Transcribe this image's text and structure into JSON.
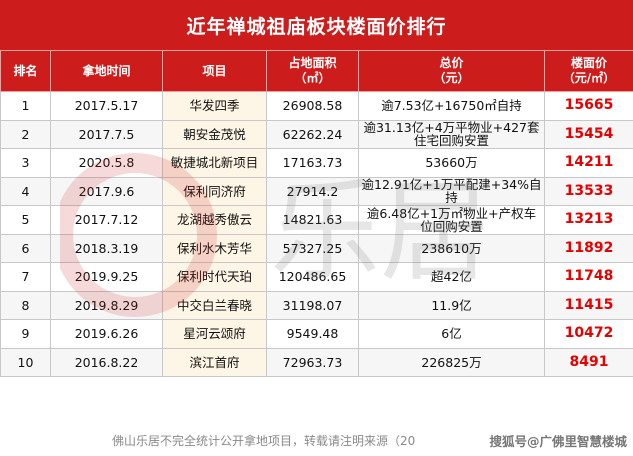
{
  "title": "近年禅城祖庙板块楼面价排行",
  "headers": {
    "rank": "排名",
    "date": "拿地时间",
    "project": "项目",
    "area": "占地面积",
    "area_unit": "（㎡）",
    "total": "总价",
    "total_unit": "（元）",
    "price": "楼面价",
    "price_unit": "（元/㎡）"
  },
  "rows": [
    {
      "rank": "1",
      "date": "2017.5.17",
      "project": "华发四季",
      "area": "26908.58",
      "total": "逾7.53亿+16750㎡自持",
      "price": "15665"
    },
    {
      "rank": "2",
      "date": "2017.7.5",
      "project": "朝安金茂悦",
      "area": "62262.24",
      "total": "逾31.13亿+4万平物业+427套住宅回购安置",
      "price": "15454"
    },
    {
      "rank": "3",
      "date": "2020.5.8",
      "project": "敏捷城北新项目",
      "area": "17163.73",
      "total": "53660万",
      "price": "14211"
    },
    {
      "rank": "4",
      "date": "2017.9.6",
      "project": "保利同济府",
      "area": "27914.2",
      "total": "逾12.91亿+1万平配建+34%自持",
      "price": "13533"
    },
    {
      "rank": "5",
      "date": "2017.7.12",
      "project": "龙湖越秀傲云",
      "area": "14821.63",
      "total": "逾6.48亿+1万㎡物业+产权车位回购安置",
      "price": "13213"
    },
    {
      "rank": "6",
      "date": "2018.3.19",
      "project": "保利水木芳华",
      "area": "57327.25",
      "total": "238610万",
      "price": "11892"
    },
    {
      "rank": "7",
      "date": "2019.9.25",
      "project": "保利时代天珀",
      "area": "120486.65",
      "total": "超42亿",
      "price": "11748"
    },
    {
      "rank": "8",
      "date": "2019.8.29",
      "project": "中交白兰春晓",
      "area": "31198.07",
      "total": "11.9亿",
      "price": "11415"
    },
    {
      "rank": "9",
      "date": "2019.6.26",
      "project": "星河云颂府",
      "area": "9549.48",
      "total": "6亿",
      "price": "10472"
    },
    {
      "rank": "10",
      "date": "2016.8.22",
      "project": "滨江首府",
      "area": "72963.73",
      "total": "226825万",
      "price": "8491"
    }
  ],
  "footer": {
    "note": "佛山乐居不完全统计公开拿地项目，转载请注明来源（20",
    "credit": "搜狐号@广佛里智慧楼城"
  },
  "watermark_text": "乐居",
  "colors": {
    "accent": "#cc1c1c",
    "price": "#e60000"
  }
}
